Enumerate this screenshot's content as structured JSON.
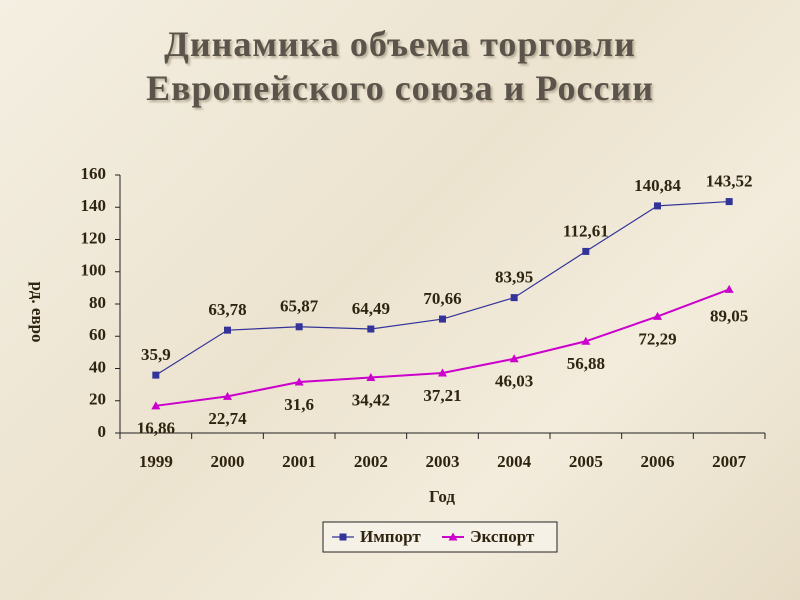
{
  "chart_data": {
    "type": "line",
    "title": [
      "Динамика объема торговли",
      "Европейского союза и России"
    ],
    "y_label": "рд. евро",
    "x_label": "Год",
    "categories": [
      "1999",
      "2000",
      "2001",
      "2002",
      "2003",
      "2004",
      "2005",
      "2006",
      "2007"
    ],
    "series": [
      {
        "name": "Импорт",
        "color": "#333399",
        "marker": "square",
        "values": [
          35.9,
          63.78,
          65.87,
          64.49,
          70.66,
          83.95,
          112.61,
          140.84,
          143.52
        ],
        "value_labels": [
          "35,9",
          "63,78",
          "65,87",
          "64,49",
          "70,66",
          "83,95",
          "112,61",
          "140,84",
          "143,52"
        ]
      },
      {
        "name": "Экспорт",
        "color": "#cc00cc",
        "marker": "triangle",
        "values": [
          16.86,
          22.74,
          31.6,
          34.42,
          37.21,
          46.03,
          56.88,
          72.29,
          89.05
        ],
        "value_labels": [
          "16,86",
          "22,74",
          "31,6",
          "34,42",
          "37,21",
          "46,03",
          "56,88",
          "72,29",
          "89,05"
        ]
      }
    ],
    "ylim": [
      0,
      160
    ],
    "yticks": [
      0,
      20,
      40,
      60,
      80,
      100,
      120,
      140,
      160
    ],
    "grid": false,
    "legend": "bottom"
  }
}
